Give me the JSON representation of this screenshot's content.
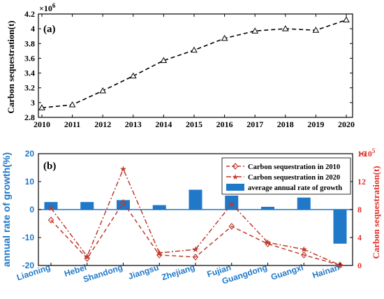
{
  "chart_data": [
    {
      "panel": "(a)",
      "type": "line",
      "ylabel": "Carbon sequestration(t)",
      "y_exponent": "×10",
      "y_exponent_power": "6",
      "x": [
        "2010",
        "2011",
        "2012",
        "2013",
        "2014",
        "2015",
        "2016",
        "2017",
        "2018",
        "2019",
        "2020"
      ],
      "series": [
        {
          "values": [
            2.93,
            2.97,
            3.16,
            3.36,
            3.57,
            3.71,
            3.87,
            3.97,
            4.0,
            3.98,
            4.12
          ],
          "color": "#000000",
          "linestyle": "dashed",
          "marker": "triangle"
        }
      ],
      "ylim": [
        2.8,
        4.2
      ],
      "yticks": [
        "2.8",
        "3",
        "3.2",
        "3.4",
        "3.6",
        "3.8",
        "4",
        "4.2"
      ],
      "grid": false
    },
    {
      "panel": "(b)",
      "type": "bar+line",
      "categories": [
        "Liaoning",
        "Hebei",
        "Shandong",
        "Jiangsu",
        "Zhejiang",
        "Fujian",
        "Guangdong",
        "Guangxi",
        "Hainan"
      ],
      "left_axis": {
        "label": "annual rate of growth(%)",
        "ylim": [
          -20,
          20
        ],
        "yticks": [
          "20",
          "10",
          "0",
          "-10",
          "-20"
        ],
        "color": "#1f78c8"
      },
      "right_axis": {
        "label": "Carbon sequestration(t)",
        "exponent": "×10",
        "exponent_power": "5",
        "ylim": [
          0,
          16
        ],
        "yticks": [
          "16",
          "12",
          "8",
          "4",
          "0"
        ],
        "color": "#e0302a"
      },
      "bars": {
        "name": "average annual rate of growth",
        "axis": "left",
        "color": "#1f78c8",
        "values": [
          2.7,
          2.7,
          3.4,
          1.6,
          7.1,
          5.0,
          1.0,
          4.3,
          -12.2
        ]
      },
      "series": [
        {
          "name": "Carbon sequestration in 2010",
          "axis": "right",
          "color": "#c0392b",
          "linestyle": "dashed",
          "marker": "diamond",
          "values": [
            6.5,
            1.0,
            9.0,
            1.5,
            1.2,
            5.6,
            3.1,
            1.5,
            0.05
          ]
        },
        {
          "name": "Carbon sequestration in 2020",
          "axis": "right",
          "color": "#c0392b",
          "linestyle": "dashdot",
          "marker": "star",
          "values": [
            8.2,
            1.3,
            13.8,
            1.8,
            2.3,
            8.8,
            3.3,
            2.3,
            0.05
          ]
        }
      ],
      "legend": "top-right",
      "grid": false
    }
  ]
}
